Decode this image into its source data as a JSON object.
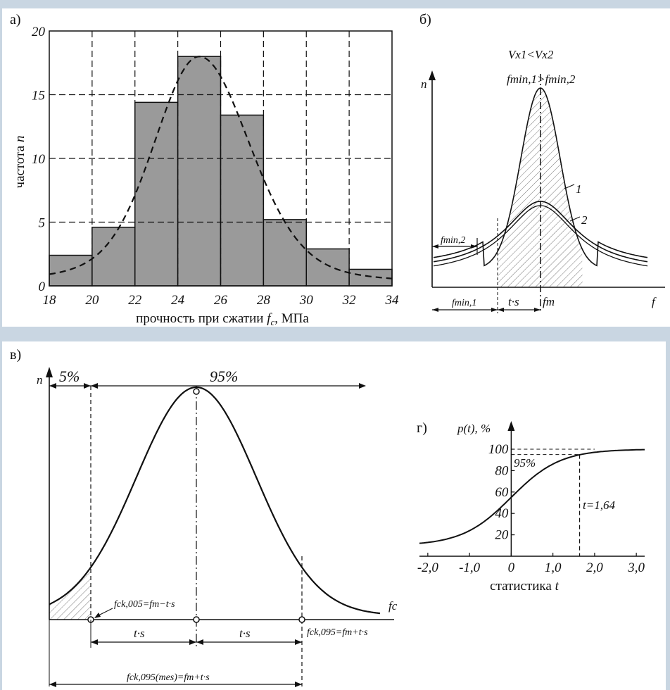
{
  "chart_data": [
    {
      "panel": "а)",
      "type": "bar",
      "xlabel": "прочность при сжатии fc, МПа",
      "xlabel_main": "прочность при сжатии ",
      "xlabel_var": "f",
      "xlabel_sub": "c",
      "xlabel_unit": ", МПа",
      "ylabel": "частота n",
      "ylabel_main": "частота ",
      "ylabel_var": "n",
      "x_ticks": [
        "18",
        "20",
        "22",
        "24",
        "26",
        "28",
        "30",
        "32",
        "34"
      ],
      "y_ticks": [
        "0",
        "5",
        "10",
        "15",
        "20"
      ],
      "xlim": [
        18,
        34
      ],
      "ylim": [
        0,
        20
      ],
      "bins": [
        {
          "from": 18,
          "to": 20,
          "value": 2.4
        },
        {
          "from": 20,
          "to": 22,
          "value": 4.6
        },
        {
          "from": 22,
          "to": 24,
          "value": 14.4
        },
        {
          "from": 24,
          "to": 26,
          "value": 18.0
        },
        {
          "from": 26,
          "to": 28,
          "value": 13.4
        },
        {
          "from": 28,
          "to": 30,
          "value": 5.2
        },
        {
          "from": 30,
          "to": 32,
          "value": 2.9
        },
        {
          "from": 32,
          "to": 34,
          "value": 1.3
        }
      ],
      "fit_curve": {
        "style": "dashed",
        "peak_x": 25,
        "peak_y": 18
      }
    },
    {
      "panel": "б)",
      "type": "line",
      "y_axis": "n",
      "x_axis": "f",
      "condition_1": "Vx1<Vx2",
      "condition_2": "fmin,1>fmin,2",
      "series": [
        {
          "name": "1",
          "shape": "narrow"
        },
        {
          "name": "2",
          "shape": "wide"
        }
      ],
      "labels": {
        "fmin2": "fmin,2",
        "fmin1": "fmin,1",
        "ts": "t·s",
        "fm": "fm"
      }
    },
    {
      "panel": "в)",
      "type": "line",
      "y_axis": "n",
      "x_axis": "fc",
      "left_pct": "5%",
      "right_pct": "95%",
      "labels": {
        "fck005": "fck,005=fm−t·s",
        "fck095": "fck,095=fm+t·s",
        "ts": "t·s",
        "fck095mes": "fck,095(mes)=fm+t·s"
      }
    },
    {
      "panel": "г)",
      "type": "line",
      "ylabel": "p(t), %",
      "xlabel": "статистика t",
      "xlabel_main": "статистика ",
      "xlabel_var": "t",
      "x_ticks": [
        "-2,0",
        "-1,0",
        "0",
        "1,0",
        "2,0",
        "3,0"
      ],
      "y_ticks": [
        "20",
        "40",
        "60",
        "80",
        "100"
      ],
      "xlim": [
        -2.2,
        3.2
      ],
      "ylim": [
        0,
        100
      ],
      "marker_pct": "95%",
      "marker_t": "t=1,64"
    }
  ]
}
